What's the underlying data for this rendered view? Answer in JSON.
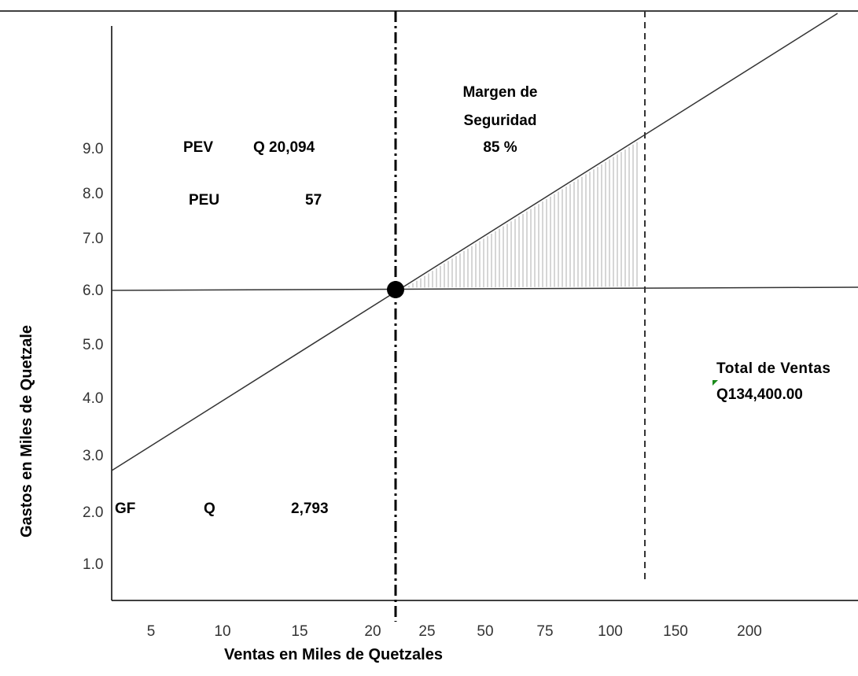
{
  "chart_data": {
    "type": "line",
    "title": "",
    "xlabel": "Ventas en Miles de Quetzales",
    "ylabel": "Gastos en Miles de Quetzale",
    "x_ticks": [
      "5",
      "10",
      "15",
      "20",
      "25",
      "50",
      "75",
      "100",
      "150",
      "200"
    ],
    "y_ticks": [
      "9.0",
      "8.0",
      "7.0",
      "6.0",
      "5.0",
      "4.0",
      "3.0",
      "2.0",
      "1.0"
    ],
    "grid": false,
    "series": [
      {
        "kind": "sales-line",
        "color": "#333333"
      },
      {
        "kind": "expense-line",
        "color": "#333333"
      }
    ],
    "break_even_marker": {
      "color": "#000000"
    },
    "safety_margin_shading": {
      "color": "#999999"
    },
    "annotations": {
      "pev_label": "PEV",
      "pev_value": "Q 20,094",
      "peu_label": "PEU",
      "peu_value": "57",
      "gf_label": "GF",
      "gf_currency": "Q",
      "gf_value": "2,793",
      "margin_line1": "Margen de",
      "margin_line2": "Seguridad",
      "margin_line3": "85 %",
      "total_line1": "Total de Ventas",
      "total_line2": "Q134,400.00"
    }
  }
}
